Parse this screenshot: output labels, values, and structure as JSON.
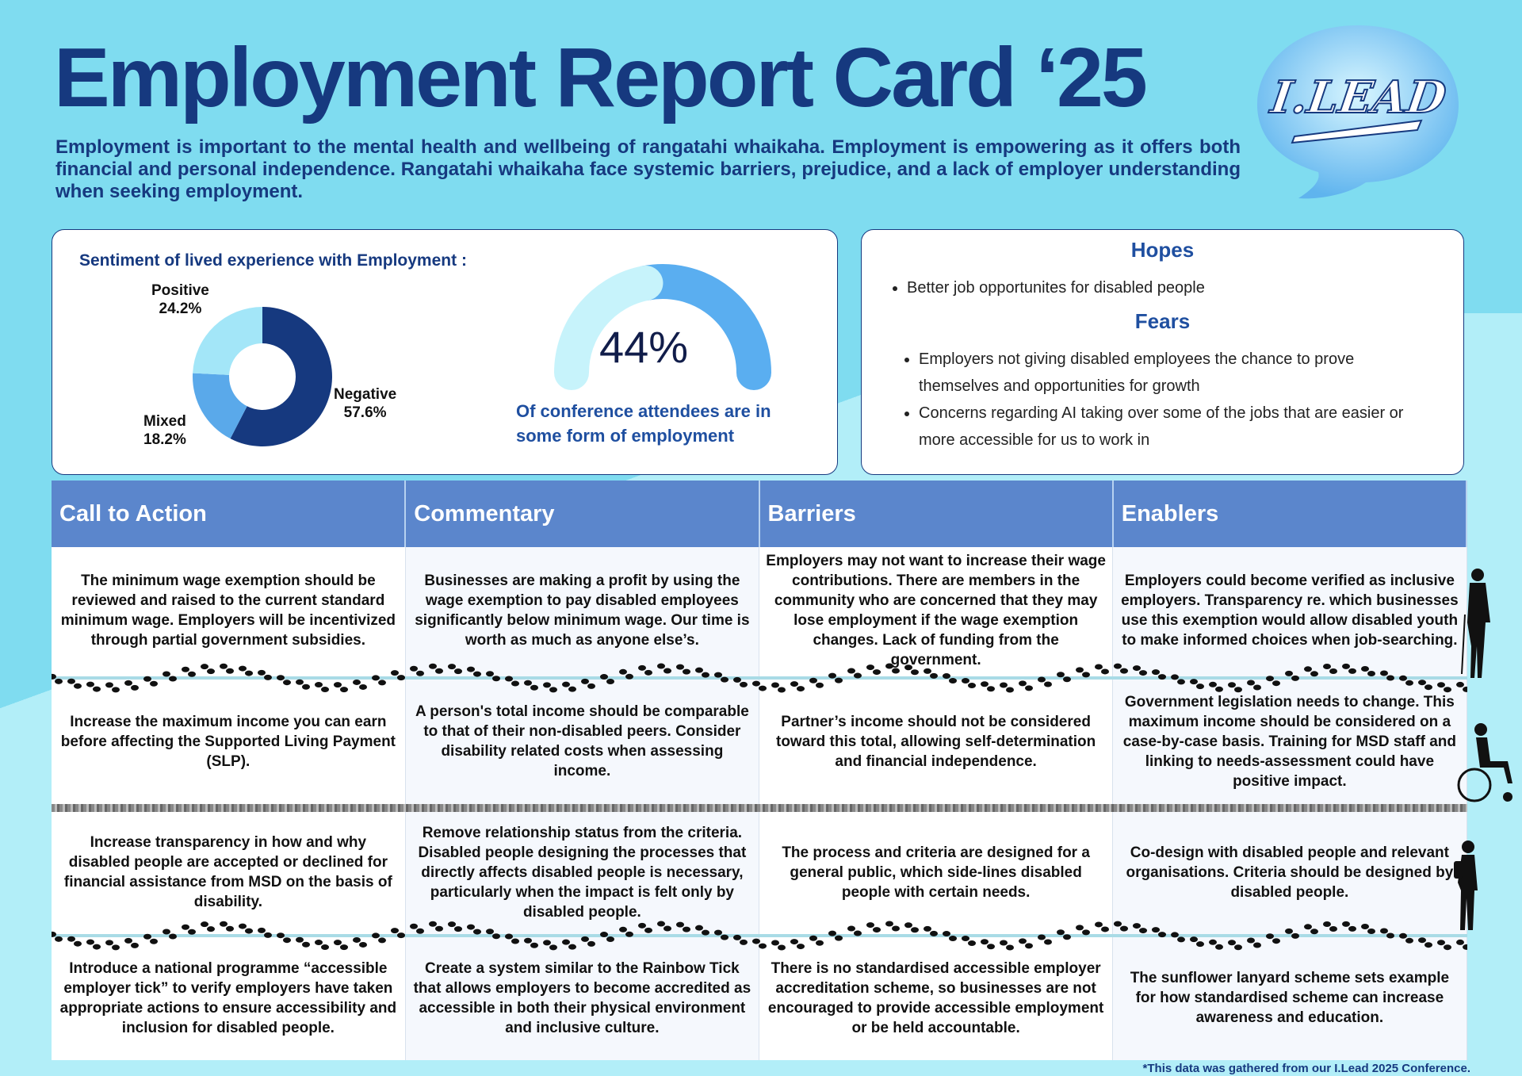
{
  "title": "Employment Report Card ‘25",
  "logo_text": "I.LEAD",
  "intro": "Employment is important to the mental health and wellbeing of rangatahi whaikaha. Employment is empowering as it offers both financial and personal independence. Rangatahi whaikaha face systemic barriers, prejudice, and a lack of employer understanding when seeking employment.",
  "sentiment": {
    "title": "Sentiment of lived experience with Employment :",
    "slices": [
      {
        "name": "Negative",
        "label": "57.6%",
        "value": 57.6,
        "color": "#16397f"
      },
      {
        "name": "Mixed",
        "label": "18.2%",
        "value": 18.2,
        "color": "#5aa9ea"
      },
      {
        "name": "Positive",
        "label": "24.2%",
        "value": 24.2,
        "color": "#a3e6f8"
      }
    ]
  },
  "gauge": {
    "value_label": "44%",
    "value": 44,
    "caption": "Of conference attendees are in some form of employment"
  },
  "hopes": {
    "title": "Hopes",
    "items": [
      "Better job opportunites for disabled people"
    ]
  },
  "fears": {
    "title": "Fears",
    "items": [
      "Employers not giving disabled employees the chance to prove themselves and opportunities for growth",
      "Concerns regarding AI taking over some of the jobs that are easier or more accessible for us to work in"
    ]
  },
  "table": {
    "headers": [
      "Call to Action",
      "Commentary",
      "Barriers",
      "Enablers"
    ],
    "rows": [
      [
        "The minimum wage exemption should be reviewed and raised to the current standard minimum wage. Employers will be incentivized through partial government subsidies.",
        "Businesses are making a profit by using the wage exemption to pay disabled employees significantly below minimum wage. Our time is worth as much as anyone else’s.",
        "Employers may not want to increase their wage contributions. There are members in the community who are concerned that they may lose employment if the wage exemption changes. Lack of funding from the government.",
        "Employers could become verified as inclusive employers. Transparency re. which businesses use this exemption would allow disabled youth to make informed choices when job-searching."
      ],
      [
        "Increase the maximum income you can earn before affecting the Supported Living Payment (SLP).",
        "A person's total income should be comparable to that of their non-disabled peers. Consider disability related costs when assessing income.",
        "Partner’s income should not be considered toward this total, allowing self-determination and financial independence.",
        "Government legislation needs to change. This maximum income should be considered on a case-by-case basis. Training for MSD staff and linking to needs-assessment could have positive impact."
      ],
      [
        "Increase transparency in how and why disabled people are accepted or declined for financial assistance from MSD on the basis of disability.",
        "Remove relationship status from the criteria. Disabled people designing the processes that directly affects disabled people is necessary, particularly when the impact is felt only by disabled people.",
        "The process and criteria are designed for a general public, which side-lines disabled people with certain needs.",
        "Co-design with disabled people and relevant organisations. Criteria should be designed by disabled people."
      ],
      [
        "Introduce a national programme “accessible employer tick” to verify employers have taken appropriate actions to ensure accessibility and inclusion for disabled people.",
        "Create a system similar to the Rainbow Tick that allows employers to become accredited as accessible in both their physical environment and inclusive culture.",
        "There is no standardised accessible employer accreditation scheme, so businesses are not encouraged to provide accessible employment or be held accountable.",
        "The sunflower lanyard scheme sets example for how standardised scheme can increase awareness and education."
      ]
    ]
  },
  "footnote": "*This data was gathered from our I.Lead 2025 Conference."
}
